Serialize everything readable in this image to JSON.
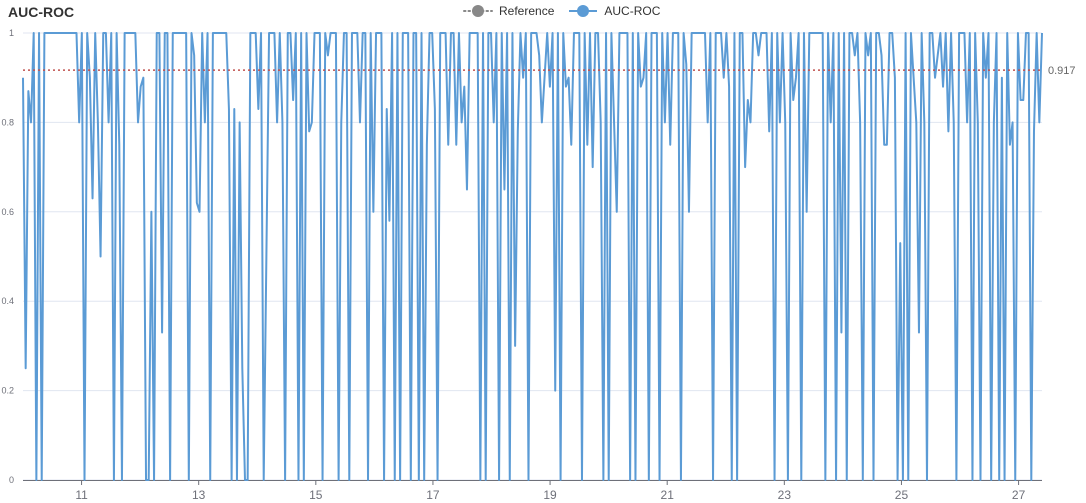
{
  "chart_data": {
    "type": "line",
    "title": "AUC-ROC",
    "legend": {
      "placement": "top-center",
      "items": [
        {
          "name": "Reference",
          "color": "#888888",
          "style": "dotted"
        },
        {
          "name": "AUC-ROC",
          "color": "#5b9bd5",
          "style": "line"
        }
      ]
    },
    "xlim": [
      10.0,
      27.4
    ],
    "ylim": [
      0,
      1
    ],
    "x_ticks": [
      11,
      13,
      15,
      17,
      19,
      21,
      23,
      25,
      27
    ],
    "x_tick_labels": [
      "11",
      "13",
      "15",
      "17",
      "19",
      "21",
      "23",
      "25",
      "27"
    ],
    "y_ticks": [
      0,
      0.2,
      0.4,
      0.6,
      0.8,
      1
    ],
    "y_tick_labels": [
      "0",
      "0.2",
      "0.4",
      "0.6",
      "0.8",
      "1"
    ],
    "grid": "horizontal",
    "reference": {
      "name": "Reference",
      "value": 0.917,
      "label": "0.917",
      "color": "#c0504d"
    },
    "series": [
      {
        "name": "AUC-ROC",
        "color": "#5b9bd5",
        "x_start": 10.0,
        "x_end": 27.4,
        "values": [
          0.9,
          0.25,
          0.87,
          0.8,
          1,
          0,
          1,
          0,
          1,
          1,
          1,
          1,
          1,
          1,
          1,
          1,
          1,
          1,
          1,
          1,
          1,
          0.8,
          1,
          0,
          1,
          0.9,
          0.63,
          1,
          0.8,
          0.5,
          1,
          1,
          0.8,
          1,
          0,
          1,
          0.75,
          0,
          1,
          1,
          1,
          1,
          1,
          0.8,
          0.88,
          0.9,
          0,
          0,
          0.6,
          0,
          1,
          1,
          0.33,
          1,
          1,
          0,
          1,
          1,
          1,
          1,
          1,
          1,
          0,
          1,
          0.95,
          0.62,
          0.6,
          1,
          0.8,
          1,
          0,
          1,
          1,
          1,
          1,
          1,
          1,
          0.83,
          0,
          0.83,
          0,
          0.8,
          0.25,
          0,
          0,
          1,
          1,
          1,
          0.83,
          1,
          0,
          0.5,
          1,
          1,
          1,
          0.8,
          1,
          0.8,
          0,
          1,
          1,
          0.85,
          1,
          0,
          1,
          0,
          1,
          0.78,
          0.8,
          1,
          1,
          1,
          0,
          1,
          0.95,
          1,
          1,
          1,
          0,
          0.8,
          1,
          1,
          0,
          1,
          1,
          1,
          0.8,
          1,
          1,
          0,
          1,
          0.6,
          1,
          1,
          1,
          0,
          0.83,
          0.58,
          1,
          0,
          1,
          0,
          1,
          1,
          1,
          0,
          1,
          1,
          0,
          1,
          0,
          0.75,
          1,
          1,
          0.83,
          0,
          1,
          1,
          1,
          0.75,
          1,
          1,
          0.75,
          1,
          0.8,
          0.88,
          0.65,
          1,
          1,
          1,
          1,
          0,
          1,
          0,
          1,
          1,
          0.8,
          1,
          0,
          1,
          0.65,
          1,
          0,
          1,
          0.3,
          0.78,
          1,
          0.9,
          1,
          0,
          1,
          1,
          1,
          0.95,
          0.8,
          0.9,
          1,
          0.88,
          1,
          0.2,
          1,
          0,
          1,
          0.88,
          0.9,
          0.75,
          1,
          1,
          1,
          0,
          1,
          0.75,
          1,
          0.7,
          1,
          1,
          0.8,
          0,
          1,
          0,
          1,
          0.8,
          0.6,
          1,
          1,
          1,
          1,
          0,
          1,
          0,
          1,
          0.88,
          0.9,
          1,
          0,
          1,
          1,
          1,
          0,
          1,
          0.8,
          1,
          0.75,
          1,
          1,
          1,
          0,
          1,
          0.93,
          0.6,
          1,
          1,
          1,
          1,
          1,
          1,
          0.8,
          1,
          0,
          1,
          1,
          1,
          0.9,
          1,
          0.88,
          0,
          1,
          0,
          1,
          1,
          0.7,
          0.85,
          0.8,
          1,
          1,
          0.95,
          1,
          1,
          1,
          0.78,
          1,
          0,
          1,
          0.8,
          1,
          0.8,
          0,
          1,
          0.85,
          0.9,
          1,
          0,
          1,
          0.6,
          1,
          1,
          1,
          1,
          1,
          1,
          0,
          1,
          0.8,
          1,
          0,
          1,
          0.33,
          1,
          0,
          1,
          1,
          0.95,
          1,
          0.8,
          0,
          1,
          0.95,
          1,
          0,
          1,
          1,
          0.95,
          0.75,
          0.75,
          1,
          1,
          0.9,
          0,
          0.53,
          0,
          1,
          0,
          1,
          0.9,
          0.8,
          0.33,
          1,
          0.8,
          0,
          1,
          1,
          0.9,
          0.95,
          1,
          0.88,
          1,
          0.78,
          1,
          0.8,
          0,
          1,
          1,
          1,
          0.8,
          1,
          0,
          1,
          0.8,
          0,
          1,
          0.9,
          1,
          0,
          0.8,
          1,
          0,
          0.9,
          0,
          1,
          0.75,
          0.8,
          0,
          1,
          0.85,
          0.85,
          1,
          1,
          0,
          0.78,
          1,
          0.8,
          1
        ]
      }
    ]
  }
}
